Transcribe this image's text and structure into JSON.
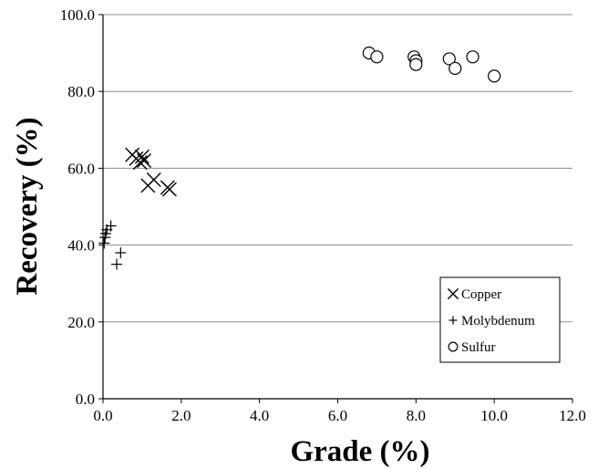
{
  "chart_data": {
    "type": "scatter",
    "xlabel": "Grade (%)",
    "ylabel": "Recovery (%)",
    "xlim": [
      0,
      12
    ],
    "ylim": [
      0,
      100
    ],
    "x_ticks": [
      "0.0",
      "2.0",
      "4.0",
      "6.0",
      "8.0",
      "10.0",
      "12.0"
    ],
    "y_ticks": [
      "0.0",
      "20.0",
      "40.0",
      "60.0",
      "80.0",
      "100.0"
    ],
    "grid": "horizontal",
    "legend": {
      "placement": "bottom-right"
    },
    "series": [
      {
        "name": "Copper",
        "marker": "x-icon",
        "points": [
          {
            "x": 0.75,
            "y": 63.5
          },
          {
            "x": 0.85,
            "y": 62.5
          },
          {
            "x": 0.95,
            "y": 61.5
          },
          {
            "x": 1.0,
            "y": 63.0
          },
          {
            "x": 1.05,
            "y": 62.0
          },
          {
            "x": 1.15,
            "y": 55.5
          },
          {
            "x": 1.3,
            "y": 57.0
          },
          {
            "x": 1.65,
            "y": 55.0
          },
          {
            "x": 1.7,
            "y": 54.5
          }
        ]
      },
      {
        "name": "Molybdenum",
        "marker": "plus-icon",
        "points": [
          {
            "x": 0.03,
            "y": 40.5
          },
          {
            "x": 0.05,
            "y": 42.0
          },
          {
            "x": 0.07,
            "y": 43.0
          },
          {
            "x": 0.1,
            "y": 44.0
          },
          {
            "x": 0.2,
            "y": 45.0
          },
          {
            "x": 0.35,
            "y": 35.0
          },
          {
            "x": 0.45,
            "y": 38.0
          }
        ]
      },
      {
        "name": "Sulfur",
        "marker": "circle-icon",
        "points": [
          {
            "x": 6.8,
            "y": 90.0
          },
          {
            "x": 7.0,
            "y": 89.0
          },
          {
            "x": 7.95,
            "y": 89.0
          },
          {
            "x": 8.0,
            "y": 88.0
          },
          {
            "x": 8.0,
            "y": 87.0
          },
          {
            "x": 8.85,
            "y": 88.5
          },
          {
            "x": 9.0,
            "y": 86.0
          },
          {
            "x": 9.45,
            "y": 89.0
          },
          {
            "x": 10.0,
            "y": 84.0
          }
        ]
      }
    ]
  }
}
